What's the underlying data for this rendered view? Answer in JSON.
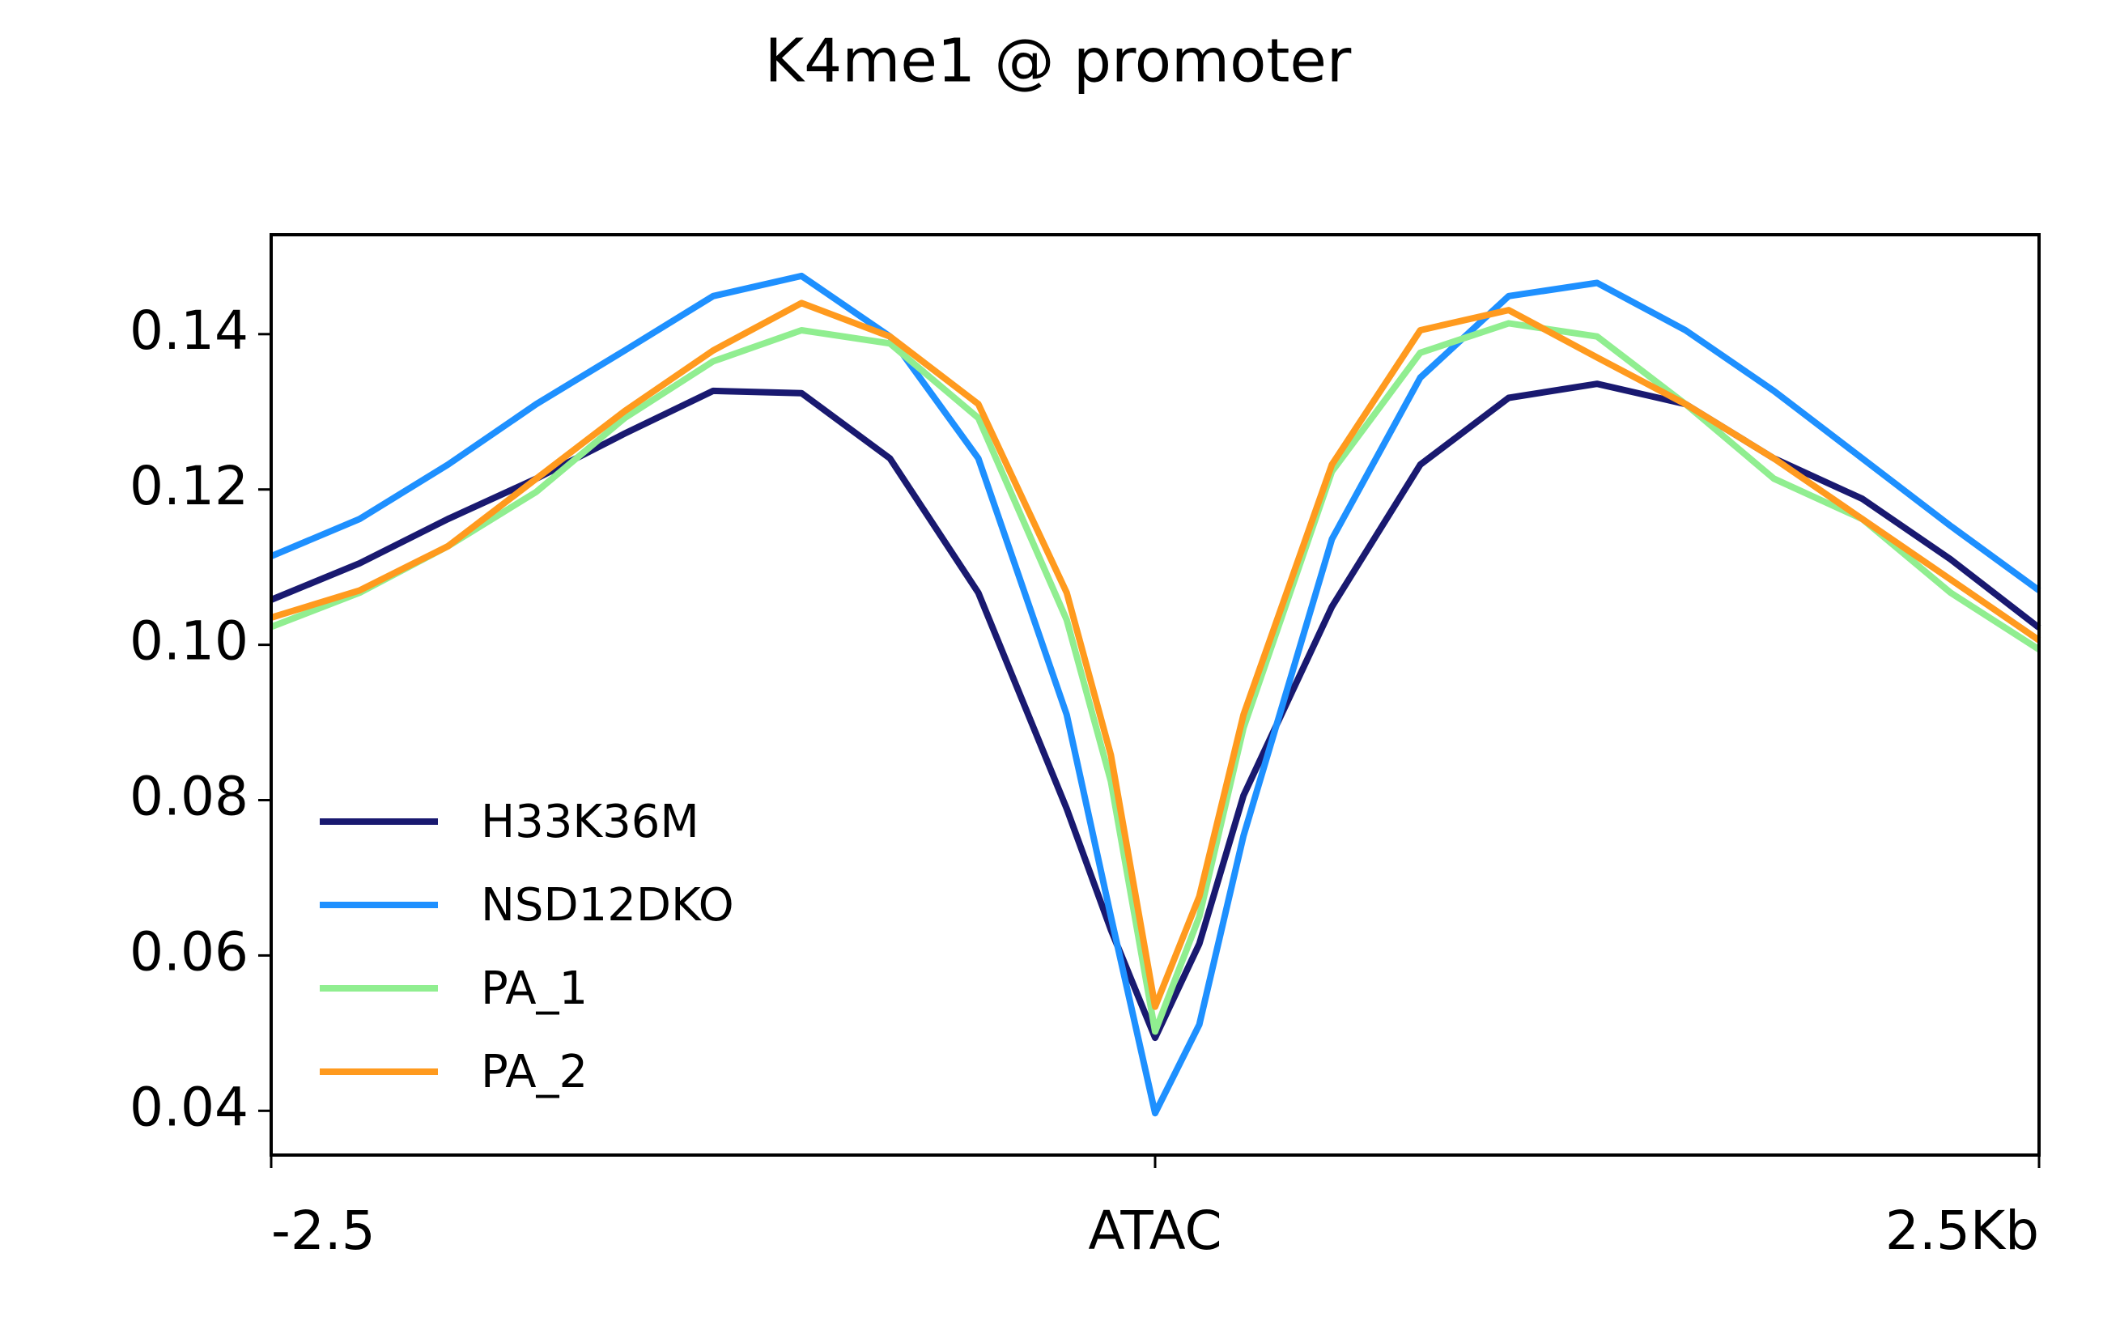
{
  "chart_data": {
    "type": "line",
    "title": "K4me1 @ promoter",
    "x": [
      -2.5,
      -2.25,
      -2,
      -1.75,
      -1.5,
      -1.25,
      -1,
      -0.75,
      -0.5,
      -0.25,
      -0.125,
      0,
      0.125,
      0.25,
      0.5,
      0.75,
      1,
      1.25,
      1.5,
      1.75,
      2,
      2.25,
      2.5
    ],
    "series": [
      {
        "name": "H33K36M",
        "color": "#191970",
        "values": [
          0.1058,
          0.1105,
          0.1162,
          0.1214,
          0.1272,
          0.1327,
          0.1324,
          0.124,
          0.1067,
          0.0789,
          0.0633,
          0.0494,
          0.0615,
          0.0806,
          0.1049,
          0.1232,
          0.1318,
          0.1336,
          0.131,
          0.124,
          0.1188,
          0.111,
          0.1022
        ]
      },
      {
        "name": "NSD12DKO",
        "color": "#1e90ff",
        "values": [
          0.1114,
          0.1162,
          0.1232,
          0.131,
          0.1379,
          0.1449,
          0.1475,
          0.1397,
          0.124,
          0.091,
          0.065,
          0.0397,
          0.0511,
          0.0754,
          0.1136,
          0.1344,
          0.1449,
          0.1466,
          0.1405,
          0.1327,
          0.124,
          0.1153,
          0.107
        ]
      },
      {
        "name": "PA_1",
        "color": "#90ee90",
        "values": [
          0.1023,
          0.1067,
          0.1127,
          0.1197,
          0.1292,
          0.1365,
          0.1405,
          0.1388,
          0.1292,
          0.1032,
          0.0824,
          0.0502,
          0.065,
          0.0893,
          0.1223,
          0.1376,
          0.1414,
          0.1397,
          0.131,
          0.1214,
          0.1162,
          0.1067,
          0.0994
        ]
      },
      {
        "name": "PA_2",
        "color": "#ff9a1e",
        "values": [
          0.1035,
          0.107,
          0.1127,
          0.1214,
          0.1301,
          0.1379,
          0.144,
          0.1397,
          0.131,
          0.1067,
          0.0858,
          0.0534,
          0.0676,
          0.091,
          0.1232,
          0.1405,
          0.1431,
          0.137,
          0.131,
          0.124,
          0.1162,
          0.1084,
          0.1006
        ]
      }
    ],
    "xlim": [
      -2.5,
      2.5
    ],
    "xticks": [
      -2.5,
      {
        "value": 0,
        "label": "ATAC"
      },
      {
        "value": 2.5,
        "label": "2.5Kb"
      }
    ],
    "ylim": [
      0.0343,
      0.1528
    ],
    "yticks": [
      0.04,
      0.06,
      0.08,
      {
        "value": 0.1,
        "label": "0.10"
      },
      0.12,
      0.14
    ],
    "legend": "lower left"
  }
}
